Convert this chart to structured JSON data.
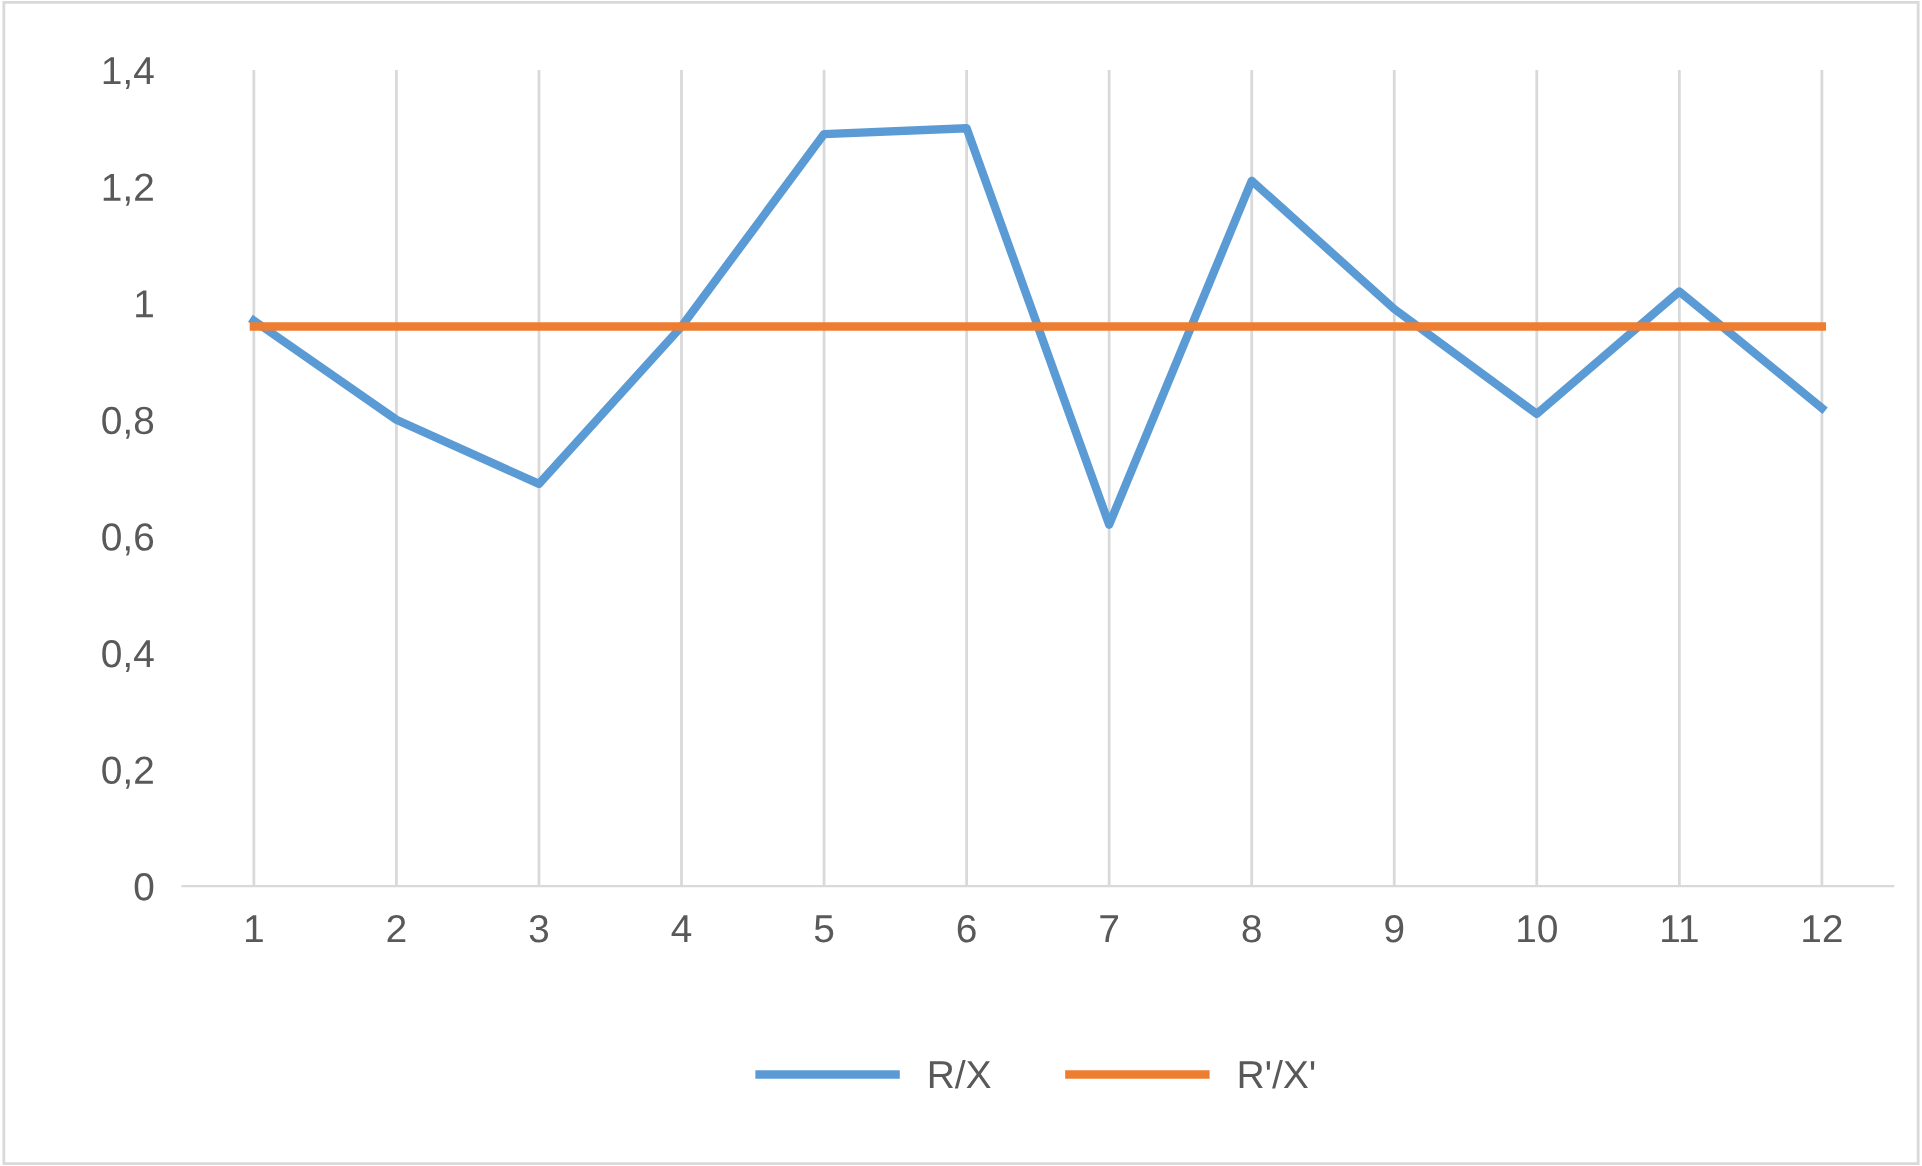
{
  "chart_data": {
    "type": "line",
    "categories": [
      "1",
      "2",
      "3",
      "4",
      "5",
      "6",
      "7",
      "8",
      "9",
      "10",
      "11",
      "12"
    ],
    "series": [
      {
        "name": "R/X",
        "color": "#5b9bd5",
        "values": [
          0.97,
          0.8,
          0.69,
          0.96,
          1.29,
          1.3,
          0.62,
          1.21,
          0.99,
          0.81,
          1.02,
          0.82
        ]
      },
      {
        "name": "R'/X'",
        "color": "#ed7d31",
        "values": [
          0.96,
          0.96,
          0.96,
          0.96,
          0.96,
          0.96,
          0.96,
          0.96,
          0.96,
          0.96,
          0.96,
          0.96
        ]
      }
    ],
    "ylim": [
      0,
      1.4
    ],
    "yticks": [
      {
        "value": 0,
        "label": "0"
      },
      {
        "value": 0.2,
        "label": "0,2"
      },
      {
        "value": 0.4,
        "label": "0,4"
      },
      {
        "value": 0.6,
        "label": "0,6"
      },
      {
        "value": 0.8,
        "label": "0,8"
      },
      {
        "value": 1,
        "label": "1"
      },
      {
        "value": 1.2,
        "label": "1,2"
      },
      {
        "value": 1.4,
        "label": "1,4"
      }
    ],
    "grid": "x",
    "legend": "bottom",
    "marker": "none",
    "line_style": "solid"
  }
}
